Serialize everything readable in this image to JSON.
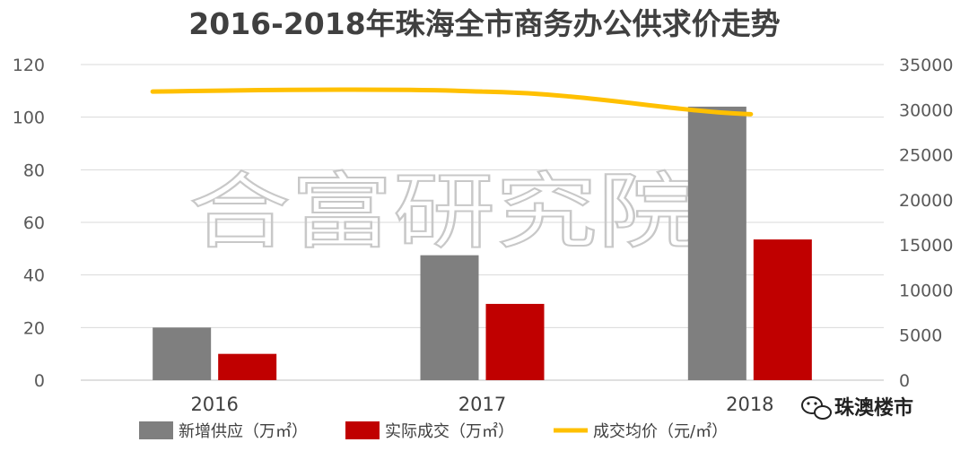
{
  "chart_data": {
    "type": "bar",
    "title": "2016-2018年珠海全市商务办公供求价走势",
    "categories": [
      "2016",
      "2017",
      "2018"
    ],
    "y_left": {
      "min": 0,
      "max": 120,
      "ticks": [
        "0",
        "20",
        "40",
        "60",
        "80",
        "100",
        "120"
      ]
    },
    "y_right": {
      "min": 0,
      "max": 35000,
      "ticks": [
        "0",
        "5000",
        "10000",
        "15000",
        "20000",
        "25000",
        "30000",
        "35000"
      ]
    },
    "grid": true,
    "legend_position": "bottom",
    "series": [
      {
        "name": "新增供应（万㎡）",
        "type": "bar",
        "axis": "left",
        "color": "#7f7f7f",
        "values": [
          20,
          47.5,
          104
        ]
      },
      {
        "name": "实际成交（万㎡）",
        "type": "bar",
        "axis": "left",
        "color": "#c00000",
        "values": [
          10,
          29,
          53.5
        ]
      },
      {
        "name": "成交均价（元/㎡）",
        "type": "line",
        "axis": "right",
        "color": "#ffc000",
        "values": [
          32000,
          32000,
          29500
        ]
      }
    ],
    "watermark": "合富研究院"
  },
  "brand": {
    "label": "珠澳楼市",
    "icon": "wechat-icon"
  }
}
